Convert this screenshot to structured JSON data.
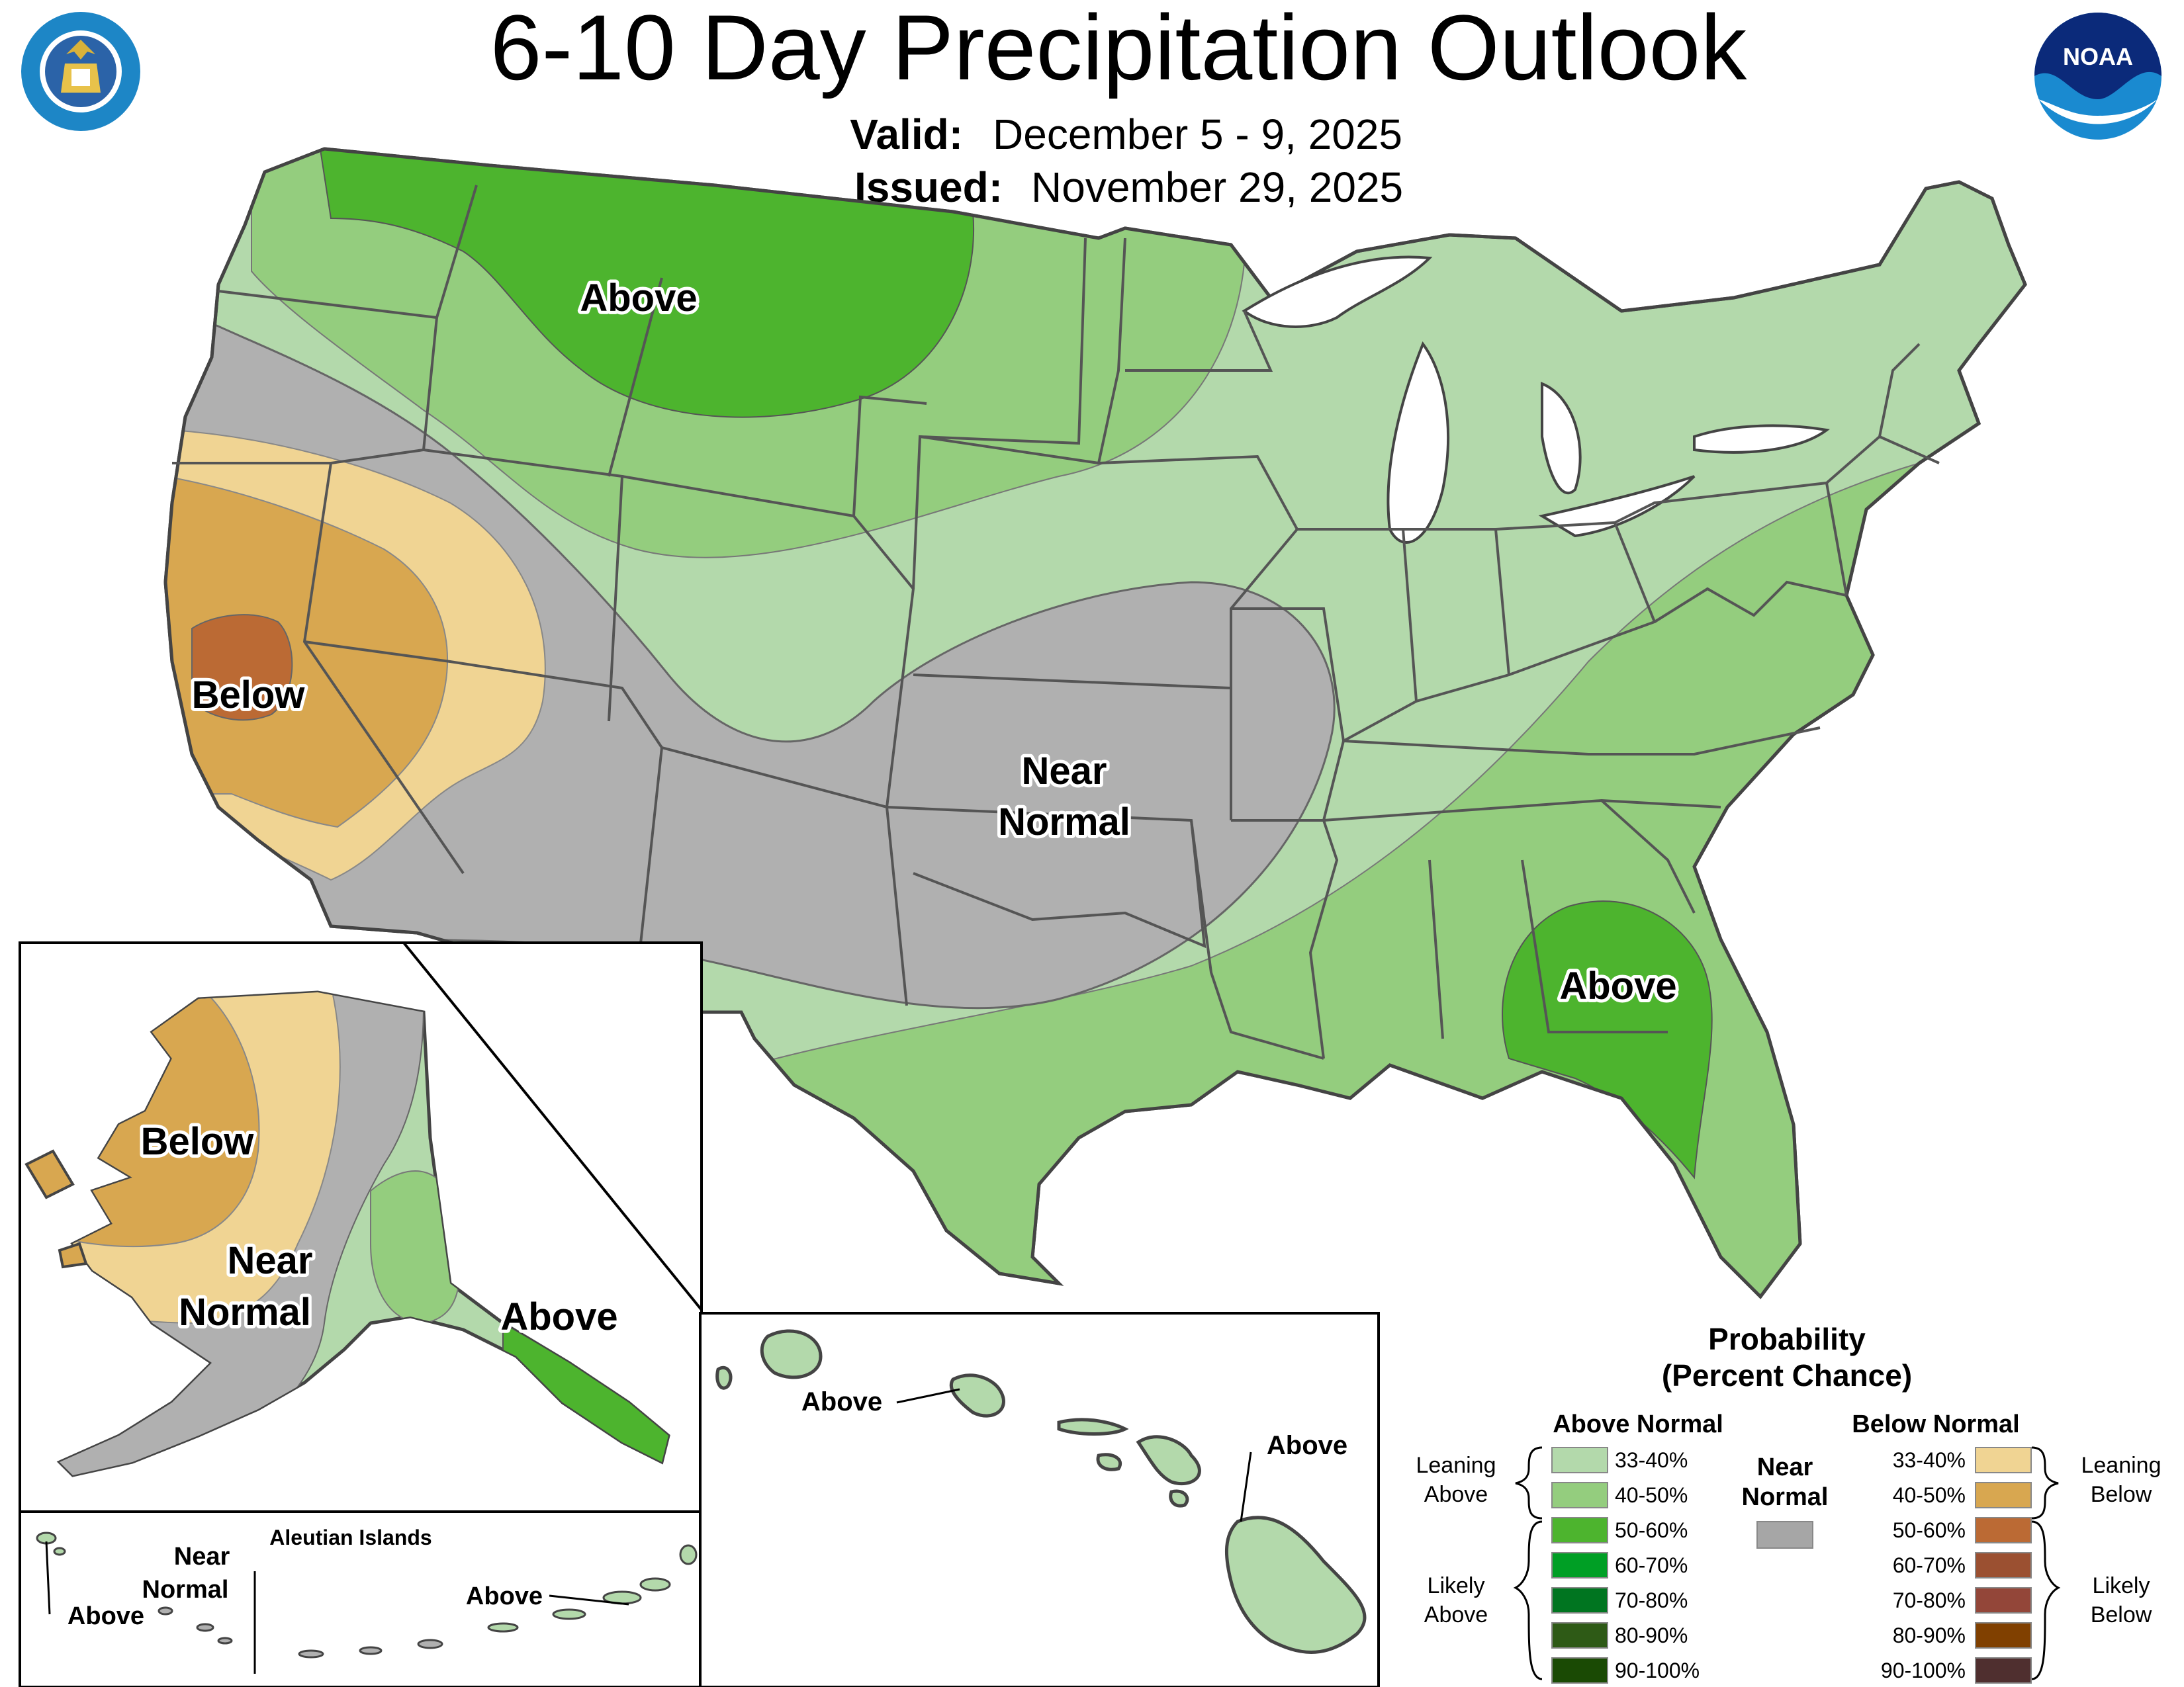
{
  "header": {
    "title": "6-10 Day Precipitation Outlook",
    "valid_label": "Valid:",
    "valid_value": "December 5 - 9, 2025",
    "issued_label": "Issued:",
    "issued_value": "November 29, 2025"
  },
  "logos": {
    "left": "DEPARTMENT OF COMMERCE · UNITED STATES OF AMERICA",
    "right": "NOAA"
  },
  "map_labels": {
    "conus_above_north": "Above",
    "conus_below": "Below",
    "conus_near_line1": "Near",
    "conus_near_line2": "Normal",
    "conus_above_south": "Above",
    "ak_below": "Below",
    "ak_near_line1": "Near",
    "ak_near_line2": "Normal",
    "ak_above": "Above",
    "aleutian_title": "Aleutian Islands",
    "aleutian_near_line1": "Near",
    "aleutian_near_line2": "Normal",
    "aleutian_above_west": "Above",
    "aleutian_above_east": "Above",
    "hi_above_oahu": "Above",
    "hi_above_big": "Above"
  },
  "colors": {
    "lean_above": "#b3d9ab",
    "above_40_50": "#94cd7e",
    "above_50_60": "#4db42e",
    "near_normal": "#b0b0b0",
    "lean_below": "#f0d493",
    "below_40_50": "#d8a750",
    "below_50_60": "#bb6a34"
  },
  "legend": {
    "title_line1": "Probability",
    "title_line2": "(Percent Chance)",
    "above_header": "Above Normal",
    "below_header": "Below Normal",
    "near_line1": "Near",
    "near_line2": "Normal",
    "near_color": "#a6a6a6",
    "leaning_above_line1": "Leaning",
    "leaning_above_line2": "Above",
    "likely_above_line1": "Likely",
    "likely_above_line2": "Above",
    "leaning_below_line1": "Leaning",
    "leaning_below_line2": "Below",
    "likely_below_line1": "Likely",
    "likely_below_line2": "Below",
    "above": [
      {
        "range": "33-40%",
        "color": "#b3d9ab"
      },
      {
        "range": "40-50%",
        "color": "#94cd7e"
      },
      {
        "range": "50-60%",
        "color": "#4db42e"
      },
      {
        "range": "60-70%",
        "color": "#009f25"
      },
      {
        "range": "70-80%",
        "color": "#007520"
      },
      {
        "range": "80-90%",
        "color": "#2e5a16"
      },
      {
        "range": "90-100%",
        "color": "#1a4a04"
      }
    ],
    "below": [
      {
        "range": "33-40%",
        "color": "#f0d493"
      },
      {
        "range": "40-50%",
        "color": "#d8a750"
      },
      {
        "range": "50-60%",
        "color": "#bb6a34"
      },
      {
        "range": "60-70%",
        "color": "#9b5031"
      },
      {
        "range": "70-80%",
        "color": "#934639"
      },
      {
        "range": "80-90%",
        "color": "#804000"
      },
      {
        "range": "90-100%",
        "color": "#4f2f2f"
      }
    ]
  }
}
